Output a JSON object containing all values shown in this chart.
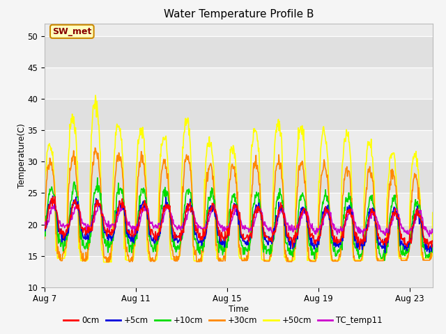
{
  "title": "Water Temperature Profile B",
  "xlabel": "Time",
  "ylabel": "Temperature(C)",
  "ylim": [
    10,
    52
  ],
  "yticks": [
    10,
    15,
    20,
    25,
    30,
    35,
    40,
    45,
    50
  ],
  "xtick_labels": [
    "Aug 7",
    "Aug 11",
    "Aug 15",
    "Aug 19",
    "Aug 23"
  ],
  "xtick_positions": [
    0,
    4,
    8,
    12,
    16
  ],
  "annotation_text": "SW_met",
  "annotation_bg": "#ffffc0",
  "annotation_border": "#cc8800",
  "annotation_fg": "#880000",
  "plot_bg_light": "#ececec",
  "plot_bg_dark": "#e0e0e0",
  "grid_color": "#ffffff",
  "fig_bg": "#f5f5f5",
  "series_colors": [
    "#ff0000",
    "#0000dd",
    "#00dd00",
    "#ff8800",
    "#ffff00",
    "#cc00cc"
  ],
  "series_labels": [
    "0cm",
    "+5cm",
    "+10cm",
    "+30cm",
    "+50cm",
    "TC_temp11"
  ],
  "n_days": 17,
  "pts_per_day": 48
}
